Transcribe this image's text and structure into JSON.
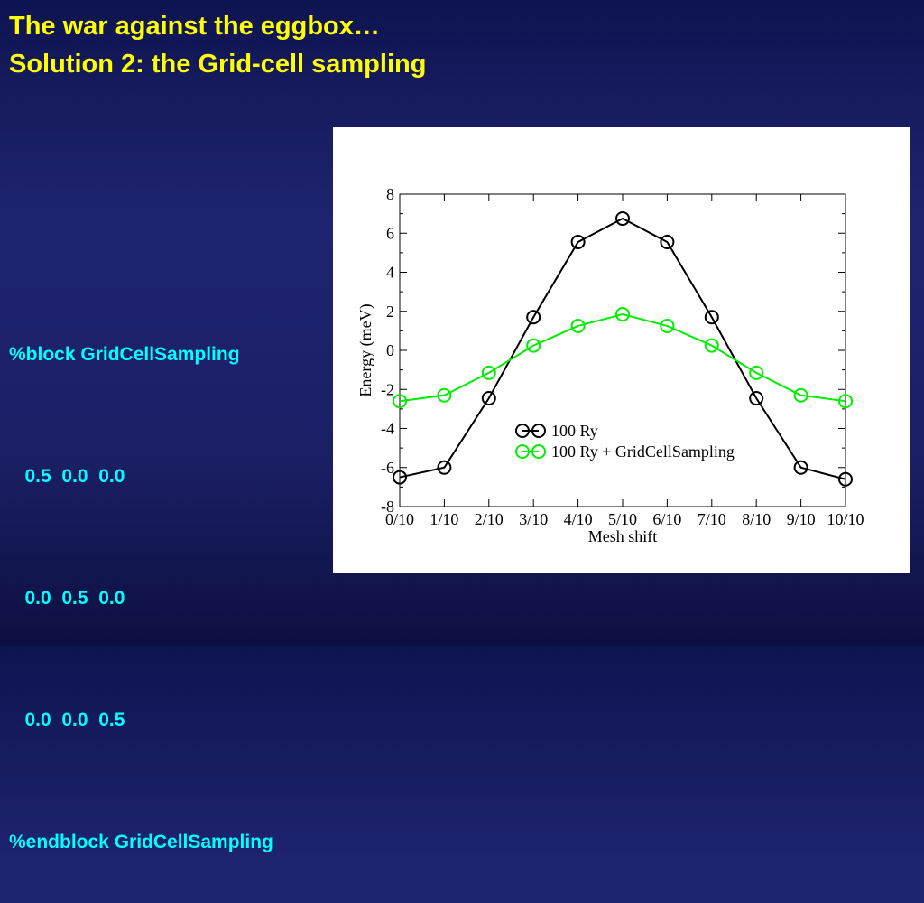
{
  "title": {
    "line1": "The war against the eggbox…",
    "line2": "Solution 2: the Grid-cell sampling"
  },
  "code": {
    "lines": [
      "%block GridCellSampling",
      "   0.5  0.0  0.0",
      "   0.0  0.5  0.0",
      "   0.0  0.0  0.5",
      "%endblock GridCellSampling"
    ]
  },
  "colors": {
    "title": "#ffff00",
    "code": "#00ffff",
    "series1": "#000000",
    "series2": "#00ee00"
  },
  "chart_data": {
    "type": "line",
    "xlabel": "Mesh shift",
    "ylabel": "Energy (meV)",
    "categories": [
      "0/10",
      "1/10",
      "2/10",
      "3/10",
      "4/10",
      "5/10",
      "6/10",
      "7/10",
      "8/10",
      "9/10",
      "10/10"
    ],
    "ylim": [
      -8,
      8
    ],
    "yticks": [
      "-8",
      "-6",
      "-4",
      "-2",
      "0",
      "2",
      "4",
      "6",
      "8"
    ],
    "legend_position": "lower-center",
    "series": [
      {
        "name": "100 Ry",
        "color": "#000000",
        "values": [
          -6.5,
          -6.0,
          -2.45,
          1.7,
          5.55,
          6.75,
          5.55,
          1.7,
          -2.45,
          -6.0,
          -6.6
        ]
      },
      {
        "name": "100 Ry + GridCellSampling",
        "color": "#00ee00",
        "values": [
          -2.6,
          -2.3,
          -1.15,
          0.25,
          1.25,
          1.85,
          1.25,
          0.25,
          -1.15,
          -2.3,
          -2.6
        ]
      }
    ]
  }
}
